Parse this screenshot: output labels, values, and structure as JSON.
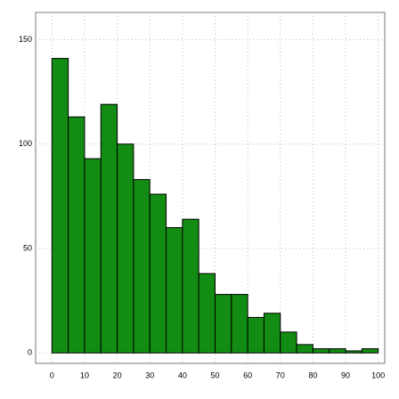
{
  "chart_data": {
    "type": "histogram",
    "bins": [
      0,
      5,
      10,
      15,
      20,
      25,
      30,
      35,
      40,
      45,
      50,
      55,
      60,
      65,
      70,
      75,
      80,
      85,
      90,
      95,
      100
    ],
    "values": [
      141,
      113,
      93,
      119,
      100,
      83,
      76,
      60,
      64,
      38,
      28,
      28,
      17,
      19,
      10,
      4,
      2,
      2,
      1,
      2
    ],
    "color": "#128c12",
    "xlim": [
      -5,
      102
    ],
    "ylim": [
      -5,
      163
    ],
    "xticks": [
      0,
      10,
      20,
      30,
      40,
      50,
      60,
      70,
      80,
      90,
      100
    ],
    "yticks": [
      0,
      50,
      100,
      150
    ],
    "grid": true
  }
}
